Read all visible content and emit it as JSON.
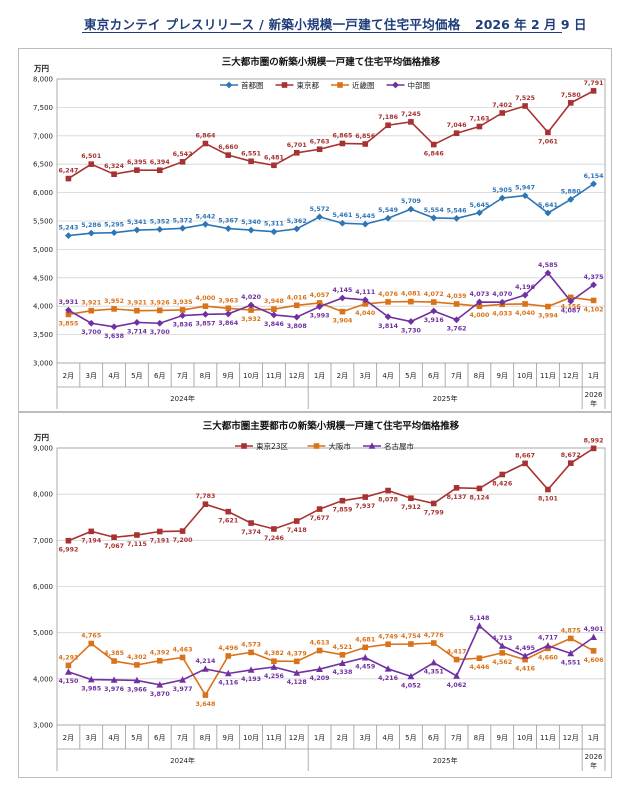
{
  "header": {
    "title": "東京カンテイ プレスリリース / 新築小規模一戸建て住宅平均価格",
    "date": "2026 年 2 月 9 日"
  },
  "chart_data": [
    {
      "type": "line",
      "title": "三大都市圏の新築小規模一戸建て住宅平均価格推移",
      "ylabel": "万円",
      "ylim": [
        3000,
        8000
      ],
      "yticks": [
        3000,
        3500,
        4000,
        4500,
        5000,
        5500,
        6000,
        6500,
        7000,
        7500,
        8000
      ],
      "grid": true,
      "legend_position": "top",
      "categories": [
        "2月",
        "3月",
        "4月",
        "5月",
        "6月",
        "7月",
        "8月",
        "9月",
        "10月",
        "11月",
        "12月",
        "1月",
        "2月",
        "3月",
        "4月",
        "5月",
        "6月",
        "7月",
        "8月",
        "9月",
        "10月",
        "11月",
        "12月",
        "1月"
      ],
      "year_labels": [
        {
          "label": "2024年",
          "from": 0,
          "to": 10
        },
        {
          "label": "2025年",
          "from": 11,
          "to": 22
        },
        {
          "label": "2026年",
          "from": 23,
          "to": 23
        }
      ],
      "series": [
        {
          "name": "首都圏",
          "color": "#2e75b6",
          "marker": "diamond",
          "label_pos": "above",
          "values": [
            5243,
            5286,
            5295,
            5341,
            5352,
            5372,
            5442,
            5367,
            5340,
            5311,
            5362,
            5572,
            5461,
            5445,
            5549,
            5709,
            5554,
            5546,
            5645,
            5905,
            5947,
            5641,
            5880,
            6154
          ]
        },
        {
          "name": "東京都",
          "color": "#a83232",
          "marker": "square",
          "label_pos": "above",
          "values": [
            6247,
            6501,
            6324,
            6395,
            6394,
            6542,
            6864,
            6660,
            6551,
            6481,
            6701,
            6763,
            6865,
            6856,
            7186,
            7245,
            6846,
            7046,
            7163,
            7402,
            7525,
            7061,
            7580,
            7791
          ],
          "label_below_idx": [
            16,
            21
          ]
        },
        {
          "name": "近畿圏",
          "color": "#d9731a",
          "marker": "square",
          "label_pos": "below",
          "values": [
            3855,
            3921,
            3952,
            3921,
            3926,
            3935,
            4000,
            3963,
            3932,
            3948,
            4016,
            4057,
            3904,
            4040,
            4076,
            4081,
            4072,
            4039,
            4000,
            4033,
            4040,
            3994,
            4156,
            4102
          ],
          "label_above_idx": [
            1,
            2,
            3,
            4,
            5,
            6,
            7,
            9,
            10,
            11,
            14,
            15,
            16,
            17
          ]
        },
        {
          "name": "中部圏",
          "color": "#7030a0",
          "marker": "diamond",
          "label_pos": "above",
          "values": [
            3931,
            3700,
            3638,
            3714,
            3700,
            3836,
            3857,
            3864,
            4020,
            3846,
            3808,
            3993,
            4145,
            4111,
            3814,
            3730,
            3916,
            3762,
            4073,
            4070,
            4196,
            4585,
            4087,
            4375
          ],
          "label_below_idx": [
            1,
            2,
            3,
            4,
            5,
            6,
            7,
            9,
            10,
            11,
            14,
            15,
            16,
            17,
            22
          ]
        }
      ]
    },
    {
      "type": "line",
      "title": "三大都市圏主要都市の新築小規模一戸建て住宅平均価格推移",
      "ylabel": "万円",
      "ylim": [
        3000,
        9000
      ],
      "yticks": [
        3000,
        4000,
        5000,
        6000,
        7000,
        8000,
        9000
      ],
      "grid": true,
      "legend_position": "top",
      "categories": [
        "2月",
        "3月",
        "4月",
        "5月",
        "6月",
        "7月",
        "8月",
        "9月",
        "10月",
        "11月",
        "12月",
        "1月",
        "2月",
        "3月",
        "4月",
        "5月",
        "6月",
        "7月",
        "8月",
        "9月",
        "10月",
        "11月",
        "12月",
        "1月"
      ],
      "year_labels": [
        {
          "label": "2024年",
          "from": 0,
          "to": 10
        },
        {
          "label": "2025年",
          "from": 11,
          "to": 22
        },
        {
          "label": "2026年",
          "from": 23,
          "to": 23
        }
      ],
      "series": [
        {
          "name": "東京23区",
          "color": "#a83232",
          "marker": "square",
          "label_pos": "below",
          "values": [
            6992,
            7194,
            7067,
            7115,
            7191,
            7200,
            7783,
            7621,
            7374,
            7246,
            7418,
            7677,
            7859,
            7937,
            8078,
            7912,
            7799,
            8137,
            8124,
            8426,
            8667,
            8101,
            8672,
            8992
          ],
          "label_above_idx": [
            6,
            20,
            22,
            23
          ]
        },
        {
          "name": "大阪市",
          "color": "#d9731a",
          "marker": "square",
          "label_pos": "above",
          "values": [
            4291,
            4765,
            4385,
            4302,
            4392,
            4463,
            3648,
            4496,
            4573,
            4382,
            4379,
            4613,
            4521,
            4681,
            4749,
            4754,
            4776,
            4417,
            4446,
            4562,
            4416,
            4660,
            4875,
            4606
          ],
          "label_below_idx": [
            6,
            18,
            19,
            20,
            21,
            23
          ]
        },
        {
          "name": "名古屋市",
          "color": "#7030a0",
          "marker": "triangle",
          "label_pos": "below",
          "values": [
            4150,
            3985,
            3976,
            3966,
            3870,
            3977,
            4214,
            4116,
            4193,
            4256,
            4128,
            4209,
            4338,
            4459,
            4216,
            4052,
            4351,
            4062,
            5148,
            4713,
            4495,
            4717,
            4551,
            4901
          ],
          "label_above_idx": [
            6,
            18,
            19,
            20,
            21,
            23
          ]
        }
      ]
    }
  ]
}
